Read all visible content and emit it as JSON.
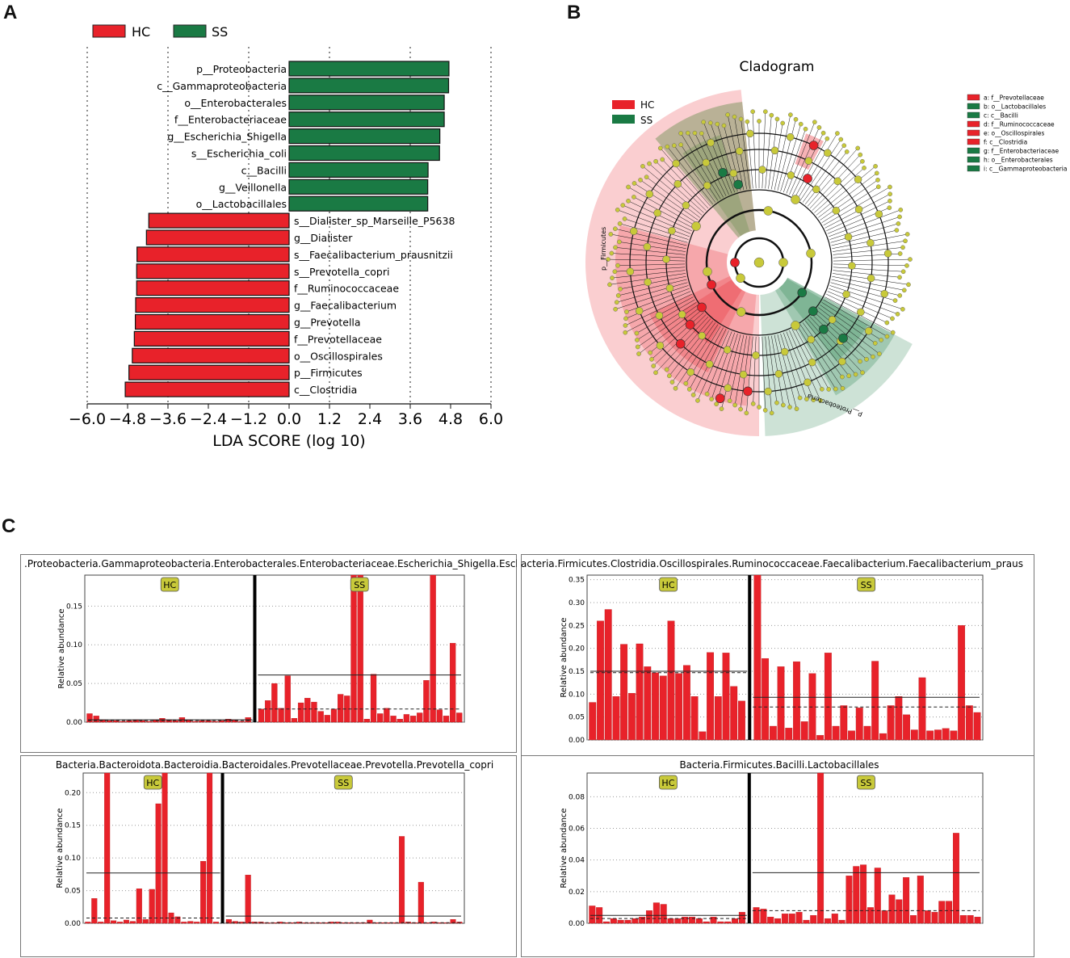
{
  "panels": {
    "a": "A",
    "b": "B",
    "c": "C"
  },
  "colors": {
    "hc": "#e8222a",
    "ss": "#1a7a44",
    "node": "#c8c93a",
    "label_bg": "#c8c93a"
  },
  "lda": {
    "legend": [
      {
        "key": "hc",
        "label": "HC"
      },
      {
        "key": "ss",
        "label": "SS"
      }
    ],
    "xlabel": "LDA SCORE (log 10)",
    "ticks": [
      "−6.0",
      "−4.8",
      "−3.6",
      "−2.4",
      "−1.2",
      "0.0",
      "1.2",
      "2.4",
      "3.6",
      "4.8",
      "6.0"
    ]
  },
  "cladogram": {
    "title": "Cladogram",
    "legend": [
      {
        "key": "hc",
        "label": "HC"
      },
      {
        "key": "ss",
        "label": "SS"
      }
    ],
    "taxa_legend": [
      {
        "key": "hc",
        "label": "a: f__Prevotellaceae"
      },
      {
        "key": "ss",
        "label": "b: o__Lactobacillales"
      },
      {
        "key": "ss",
        "label": "c: c__Bacilli"
      },
      {
        "key": "hc",
        "label": "d: f__Ruminococcaceae"
      },
      {
        "key": "hc",
        "label": "e: o__Oscillospirales"
      },
      {
        "key": "hc",
        "label": "f: c__Clostridia"
      },
      {
        "key": "ss",
        "label": "g: f__Enterobacteriaceae"
      },
      {
        "key": "ss",
        "label": "h: o__Enterobacterales"
      },
      {
        "key": "ss",
        "label": "i: c__Gammaproteobacteria"
      }
    ],
    "sector_labels": {
      "firmicutes": "p__Firmicutes",
      "proteobacteria": "p__Proteobacteria"
    }
  },
  "chart_data": [
    {
      "type": "bar",
      "orientation": "horizontal",
      "title": "",
      "xlabel": "LDA SCORE (log 10)",
      "ylabel": "",
      "xlim": [
        -6.0,
        6.0
      ],
      "categories": [
        "p__Proteobacteria",
        "c__Gammaproteobacteria",
        "o__Enterobacterales",
        "f__Enterobacteriaceae",
        "g__Escherichia_Shigella",
        "s__Escherichia_coli",
        "c__Bacilli",
        "g__Veillonella",
        "o__Lactobacillales",
        "s__Dialister_sp_Marseille_P5638",
        "g__Dialister",
        "s__Faecalibacterium_prausnitzii",
        "s__Prevotella_copri",
        "f__Ruminococcaceae",
        "g__Faecalibacterium",
        "g__Prevotella",
        "f__Prevotellaceae",
        "o__Oscillospirales",
        "p__Firmicutes",
        "c__Clostridia"
      ],
      "values": [
        4.75,
        4.74,
        4.61,
        4.61,
        4.48,
        4.47,
        4.13,
        4.12,
        4.12,
        -4.17,
        -4.24,
        -4.52,
        -4.53,
        -4.53,
        -4.56,
        -4.57,
        -4.6,
        -4.66,
        -4.76,
        -4.87
      ],
      "groups": [
        "SS",
        "SS",
        "SS",
        "SS",
        "SS",
        "SS",
        "SS",
        "SS",
        "SS",
        "HC",
        "HC",
        "HC",
        "HC",
        "HC",
        "HC",
        "HC",
        "HC",
        "HC",
        "HC",
        "HC"
      ]
    },
    {
      "type": "bar",
      "title": ".Proteobacteria.Gammaproteobacteria.Enterobacterales.Enterobacteriaceae.Escherichia_Shigella.Esch",
      "ylabel": "Relative abundance",
      "ylim": [
        0,
        0.19
      ],
      "yticks": [
        "0.00",
        "0.05",
        "0.10",
        "0.15"
      ],
      "group_labels": [
        "HC",
        "SS"
      ],
      "hc_values": [
        0.011,
        0.008,
        0.003,
        0.002,
        0.002,
        0.001,
        0.002,
        0.003,
        0.002,
        0.001,
        0.003,
        0.005,
        0.003,
        0.002,
        0.006,
        0.003,
        0.001,
        0.002,
        0.002,
        0.001,
        0.002,
        0.004,
        0.003,
        0.001,
        0.006
      ],
      "ss_values": [
        0.017,
        0.028,
        0.05,
        0.018,
        0.06,
        0.005,
        0.025,
        0.031,
        0.026,
        0.014,
        0.009,
        0.017,
        0.036,
        0.034,
        0.19,
        0.19,
        0.004,
        0.062,
        0.011,
        0.018,
        0.008,
        0.004,
        0.01,
        0.008,
        0.012,
        0.054,
        0.19,
        0.016,
        0.008,
        0.102,
        0.012
      ],
      "hc_mean": 0.003,
      "hc_median": 0.002,
      "ss_mean": 0.061,
      "ss_median": 0.017
    },
    {
      "type": "bar",
      "title": "acteria.Firmicutes.Clostridia.Oscillospirales.Ruminococcaceae.Faecalibacterium.Faecalibacterium_praus",
      "ylabel": "Relative abundance",
      "ylim": [
        0,
        0.36
      ],
      "yticks": [
        "0.00",
        "0.05",
        "0.10",
        "0.15",
        "0.20",
        "0.25",
        "0.30",
        "0.35"
      ],
      "group_labels": [
        "HC",
        "SS"
      ],
      "hc_values": [
        0.082,
        0.26,
        0.285,
        0.095,
        0.209,
        0.102,
        0.21,
        0.16,
        0.147,
        0.14,
        0.26,
        0.145,
        0.163,
        0.095,
        0.018,
        0.191,
        0.095,
        0.19,
        0.117,
        0.085
      ],
      "ss_values": [
        0.36,
        0.178,
        0.03,
        0.16,
        0.026,
        0.171,
        0.04,
        0.145,
        0.01,
        0.19,
        0.03,
        0.075,
        0.02,
        0.07,
        0.03,
        0.172,
        0.014,
        0.075,
        0.095,
        0.055,
        0.022,
        0.136,
        0.02,
        0.022,
        0.025,
        0.02,
        0.25,
        0.075,
        0.06
      ],
      "hc_mean": 0.15,
      "hc_median": 0.147,
      "ss_mean": 0.093,
      "ss_median": 0.072
    },
    {
      "type": "bar",
      "title": "Bacteria.Bacteroidota.Bacteroidia.Bacteroidales.Prevotellaceae.Prevotella.Prevotella_copri",
      "ylabel": "Relative abundance",
      "ylim": [
        0,
        0.23
      ],
      "yticks": [
        "0.00",
        "0.05",
        "0.10",
        "0.15",
        "0.20"
      ],
      "group_labels": [
        "HC",
        "SS"
      ],
      "hc_values": [
        0.002,
        0.038,
        0.002,
        0.23,
        0.004,
        0.002,
        0.005,
        0.003,
        0.053,
        0.006,
        0.052,
        0.183,
        0.23,
        0.016,
        0.01,
        0.002,
        0.003,
        0.002,
        0.095,
        0.23,
        0.002
      ],
      "ss_values": [
        0.006,
        0.003,
        0.002,
        0.074,
        0.002,
        0.002,
        0.001,
        0.001,
        0.002,
        0.001,
        0.001,
        0.002,
        0.001,
        0.001,
        0.001,
        0.001,
        0.002,
        0.002,
        0.001,
        0.001,
        0.001,
        0.001,
        0.005,
        0.001,
        0.001,
        0.001,
        0.001,
        0.133,
        0.002,
        0.001,
        0.063,
        0.001,
        0.002,
        0.001,
        0.001,
        0.006,
        0.002
      ],
      "hc_mean": 0.077,
      "hc_median": 0.008,
      "ss_mean": 0.011,
      "ss_median": 0.001
    },
    {
      "type": "bar",
      "title": "Bacteria.Firmicutes.Bacilli.Lactobacillales",
      "ylabel": "Relative abundance",
      "ylim": [
        0,
        0.095
      ],
      "yticks": [
        "0.00",
        "0.02",
        "0.04",
        "0.06",
        "0.08"
      ],
      "group_labels": [
        "HC",
        "SS"
      ],
      "hc_values": [
        0.011,
        0.01,
        0.001,
        0.003,
        0.002,
        0.002,
        0.003,
        0.004,
        0.008,
        0.013,
        0.012,
        0.003,
        0.003,
        0.004,
        0.004,
        0.003,
        0.001,
        0.004,
        0.001,
        0.001,
        0.003,
        0.007
      ],
      "ss_values": [
        0.01,
        0.009,
        0.004,
        0.003,
        0.006,
        0.006,
        0.007,
        0.002,
        0.005,
        0.095,
        0.003,
        0.006,
        0.002,
        0.03,
        0.036,
        0.037,
        0.01,
        0.035,
        0.008,
        0.018,
        0.015,
        0.029,
        0.005,
        0.03,
        0.008,
        0.007,
        0.014,
        0.014,
        0.057,
        0.005,
        0.005,
        0.004
      ],
      "hc_mean": 0.005,
      "hc_median": 0.003,
      "ss_mean": 0.032,
      "ss_median": 0.008
    }
  ]
}
